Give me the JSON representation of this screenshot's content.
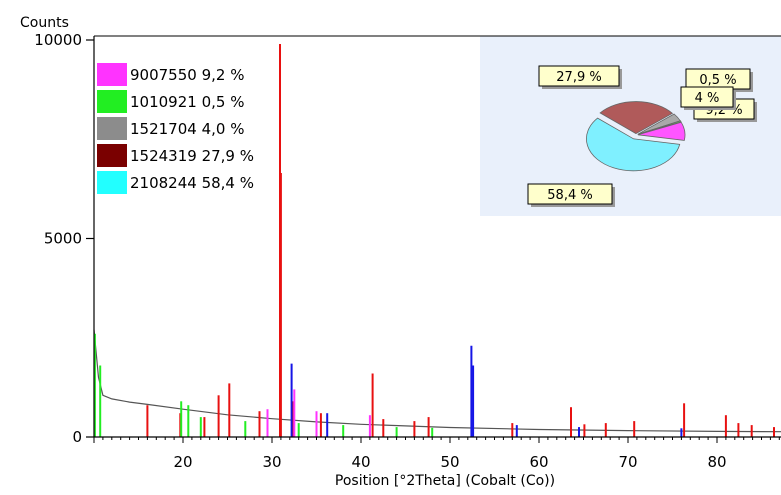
{
  "chart_data": {
    "type": "bar",
    "ylabel": "Counts",
    "xlabel": "Position [°2Theta] (Cobalt (Co))",
    "xlim": [
      10,
      90
    ],
    "ylim": [
      0,
      10000
    ],
    "x_ticks": [
      20,
      30,
      40,
      50,
      60,
      70,
      80
    ],
    "y_ticks": [
      0,
      5000,
      10000
    ],
    "grid": false,
    "legend_placement": "top-left",
    "legend": [
      {
        "label": "9007550 9,2 %",
        "color": "#ff33ff"
      },
      {
        "label": "1010921 0,5 %",
        "color": "#22ee22"
      },
      {
        "label": "1521704 4,0 %",
        "color": "#8c8c8c"
      },
      {
        "label": "1524319 27,9 %",
        "color": "#7a0000"
      },
      {
        "label": "2108244 58,4 %",
        "color": "#22ffff"
      }
    ],
    "background_profile": {
      "x": [
        10,
        10.5,
        11,
        12,
        14,
        16,
        20,
        25,
        30,
        35,
        40,
        50,
        60,
        70,
        80,
        90
      ],
      "y": [
        2700,
        1500,
        1050,
        960,
        880,
        820,
        700,
        560,
        460,
        380,
        320,
        240,
        190,
        160,
        140,
        130
      ]
    },
    "series": [
      {
        "color": "#e81010",
        "x": [
          16.0,
          19.7,
          22.4,
          24.0,
          25.2,
          28.6,
          30.9,
          31.0,
          32.3,
          35.5,
          41.3,
          42.5,
          46.0,
          47.6,
          57.0,
          63.6,
          65.1,
          67.5,
          70.7,
          76.3,
          81.0,
          82.4,
          83.9,
          86.4
        ],
        "y": [
          800,
          600,
          500,
          1050,
          1350,
          650,
          9900,
          6650,
          900,
          600,
          1600,
          450,
          400,
          500,
          350,
          750,
          320,
          350,
          400,
          850,
          550,
          350,
          300,
          250
        ]
      },
      {
        "color": "#1515e6",
        "x": [
          32.2,
          36.2,
          52.4,
          52.6,
          57.5,
          64.5,
          76.0
        ],
        "y": [
          1850,
          600,
          2300,
          1800,
          300,
          250,
          220
        ]
      },
      {
        "color": "#ff33ff",
        "x": [
          29.5,
          32.5,
          35.0,
          41.0
        ],
        "y": [
          700,
          1200,
          650,
          550
        ]
      },
      {
        "color": "#22ee22",
        "x": [
          10.1,
          10.7,
          19.8,
          20.6,
          22.0,
          27.0,
          33.0,
          38.0,
          44.0,
          48.0
        ],
        "y": [
          2600,
          1800,
          900,
          800,
          500,
          400,
          350,
          300,
          250,
          230
        ]
      }
    ],
    "inset_pie": {
      "slices": [
        {
          "value": 58.4,
          "label": "58,4 %",
          "color": "#7ff0ff"
        },
        {
          "value": 27.9,
          "label": "27,9 %",
          "color": "#b05a5a"
        },
        {
          "value": 4.0,
          "label": "4 %",
          "color": "#a9a9a9"
        },
        {
          "value": 0.5,
          "label": "0,5 %",
          "color": "#60e860"
        },
        {
          "value": 9.2,
          "label": "9,2 %",
          "color": "#ff55ff"
        }
      ]
    }
  }
}
